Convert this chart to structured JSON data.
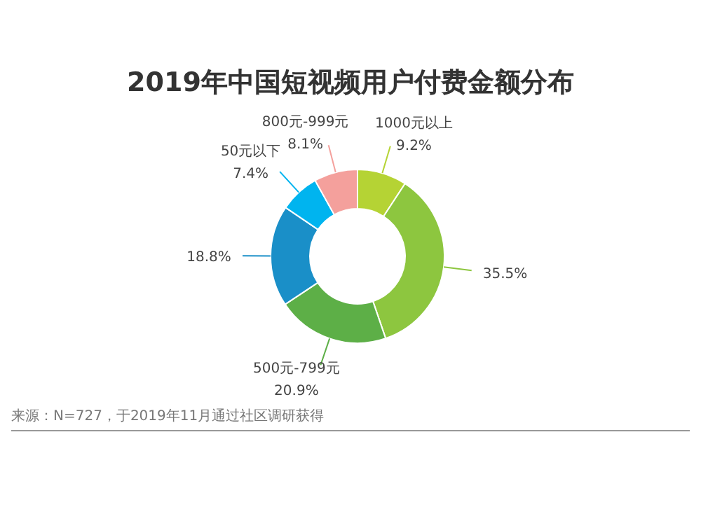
{
  "chart_data": {
    "type": "donut",
    "title": "2019年中国短视频用户付费金额分布",
    "categories": [
      "1000元以上",
      null,
      "500元-799元",
      null,
      "50元以下",
      "800元-999元"
    ],
    "values": [
      9.2,
      35.5,
      20.9,
      18.8,
      7.4,
      8.1
    ],
    "colors": [
      "#b5d334",
      "#8dc63f",
      "#5daf47",
      "#1a8fc8",
      "#00b4ef",
      "#f4a09c"
    ],
    "value_labels": [
      "9.2%",
      "35.5%",
      "20.9%",
      "18.8%",
      "7.4%",
      "8.1%"
    ],
    "annotations": [
      "来源：N=727，于2019年11月通过社区调研获得"
    ]
  }
}
